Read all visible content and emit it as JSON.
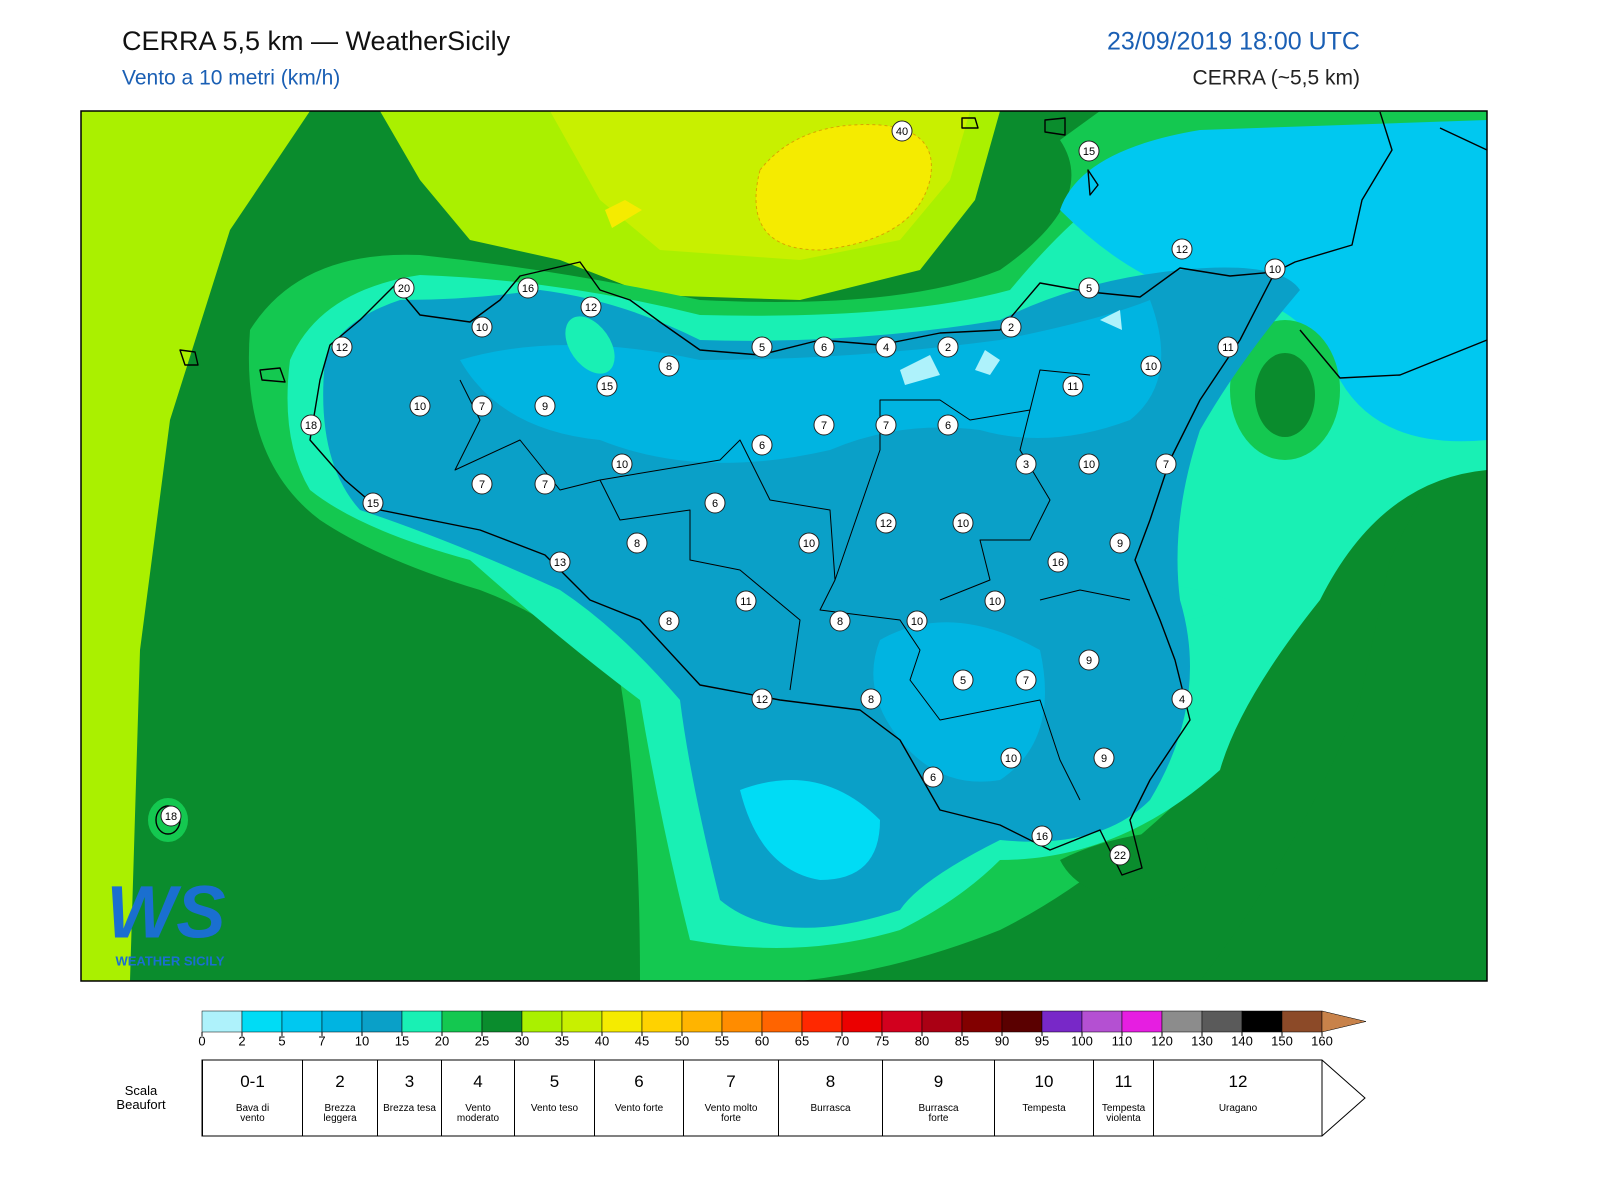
{
  "header": {
    "title": "CERRA 5,5 km — WeatherSicily",
    "subtitle": "Vento a 10 metri (km/h)",
    "datetime": "23/09/2019 18:00 UTC",
    "model": "CERRA (~5,5 km)"
  },
  "map": {
    "labels": [
      40,
      15,
      12,
      10,
      20,
      16,
      12,
      5,
      10,
      2,
      12,
      5,
      6,
      4,
      2,
      11,
      8,
      10,
      15,
      11,
      10,
      7,
      9,
      18,
      7,
      7,
      6,
      6,
      10,
      3,
      10,
      7,
      7,
      7,
      15,
      6,
      12,
      10,
      8,
      10,
      9,
      13,
      16,
      11,
      10,
      8,
      8,
      10,
      9,
      5,
      7,
      12,
      8,
      4,
      6,
      10,
      9,
      16,
      22,
      18
    ]
  },
  "colorbar": {
    "colors": [
      "#aef2fb",
      "#00dcf5",
      "#00c8f0",
      "#00b4e1",
      "#0aa0c8",
      "#19f0b4",
      "#14c850",
      "#0a8c2d",
      "#aaf000",
      "#c8f000",
      "#f5eb00",
      "#ffd200",
      "#ffb400",
      "#ff8c00",
      "#ff6400",
      "#ff2800",
      "#eb0000",
      "#d2001e",
      "#aa0014",
      "#820000",
      "#5a0000",
      "#7828c8",
      "#b450d2",
      "#e61ee1",
      "#8c8c8c",
      "#5a5a5a",
      "#000000",
      "#8c4a28",
      "#c8824a"
    ],
    "ticks": [
      0,
      2,
      5,
      7,
      10,
      15,
      20,
      25,
      30,
      35,
      40,
      45,
      50,
      55,
      60,
      65,
      70,
      75,
      80,
      85,
      90,
      95,
      100,
      110,
      120,
      130,
      140,
      150,
      160
    ]
  },
  "beaufort": {
    "title": "Scala Beaufort",
    "scale": [
      {
        "force": "0-1",
        "label": "Bava di vento"
      },
      {
        "force": 2,
        "label": "Brezza leggera"
      },
      {
        "force": 3,
        "label": "Brezza tesa"
      },
      {
        "force": 4,
        "label": "Vento moderato"
      },
      {
        "force": 5,
        "label": "Vento teso"
      },
      {
        "force": 6,
        "label": "Vento forte"
      },
      {
        "force": 7,
        "label": "Vento molto forte"
      },
      {
        "force": 8,
        "label": "Burrasca"
      },
      {
        "force": 9,
        "label": "Burrasca forte"
      },
      {
        "force": 10,
        "label": "Tempesta"
      },
      {
        "force": 11,
        "label": "Tempesta violenta"
      },
      {
        "force": 12,
        "label": "Uragano"
      }
    ]
  },
  "logo": {
    "mark": "WS",
    "text": "WEATHER SICILY"
  }
}
